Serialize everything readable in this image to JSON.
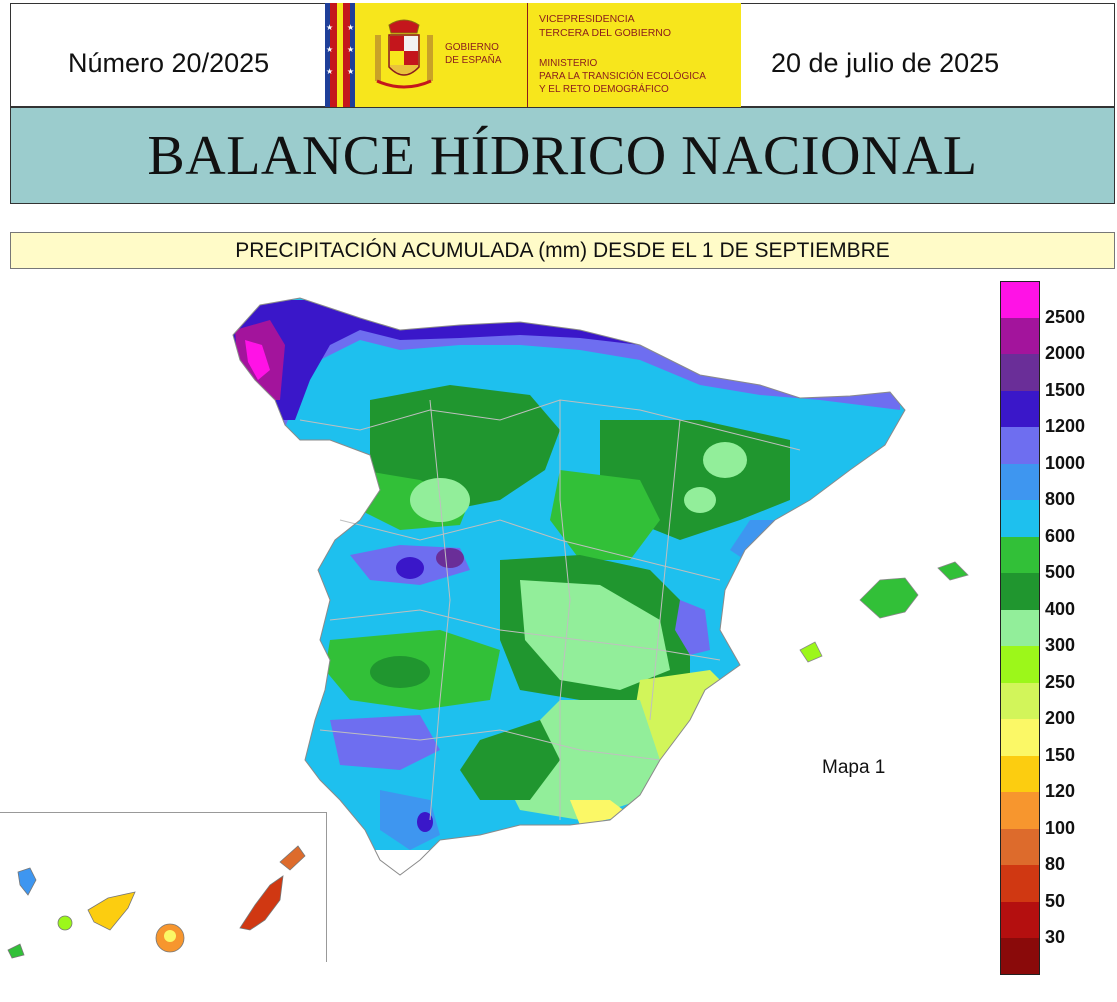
{
  "header": {
    "issue_number": "Número 20/2025",
    "date": "20 de julio de 2025",
    "gov_label": "GOBIERNO\nDE ESPAÑA",
    "ministry_top": "VICEPRESIDENCIA\nTERCERA DEL GOBIERNO",
    "ministry_bottom": "MINISTERIO\nPARA LA TRANSICIÓN ECOLÓGICA\nY EL RETO DEMOGRÁFICO",
    "banner_color": "#f7e61c"
  },
  "title": "BALANCE HÍDRICO NACIONAL",
  "subtitle": "PRECIPITACIÓN ACUMULADA (mm) DESDE EL 1 DE SEPTIEMBRE",
  "map": {
    "label": "Mapa 1",
    "dominant_regions": [
      {
        "region": "northwest-coast",
        "class": "2000-2500"
      },
      {
        "region": "cantabrian-coast",
        "class": "1000-1500"
      },
      {
        "region": "northern-plateau",
        "class": "400-600"
      },
      {
        "region": "central-system",
        "class": "1000-1500"
      },
      {
        "region": "la-mancha",
        "class": "300-400"
      },
      {
        "region": "murcia-alicante",
        "class": "200-300"
      },
      {
        "region": "canary-islands-east",
        "class": "50-100"
      }
    ]
  },
  "legend": [
    {
      "label": "2500",
      "color": "#ff12e6"
    },
    {
      "label": "2000",
      "color": "#a3149c"
    },
    {
      "label": "1500",
      "color": "#6a2e98"
    },
    {
      "label": "1200",
      "color": "#3a17c9"
    },
    {
      "label": "1000",
      "color": "#6e6ef0"
    },
    {
      "label": "800",
      "color": "#3e96f0"
    },
    {
      "label": "600",
      "color": "#1ec0ee"
    },
    {
      "label": "500",
      "color": "#32c038"
    },
    {
      "label": "400",
      "color": "#20962f"
    },
    {
      "label": "300",
      "color": "#92ee9a"
    },
    {
      "label": "250",
      "color": "#9cf71a"
    },
    {
      "label": "200",
      "color": "#d2f55a"
    },
    {
      "label": "150",
      "color": "#fbf866"
    },
    {
      "label": "120",
      "color": "#fccd10"
    },
    {
      "label": "100",
      "color": "#f7962e"
    },
    {
      "label": "80",
      "color": "#dd6b2c"
    },
    {
      "label": "50",
      "color": "#d03812"
    },
    {
      "label": "30",
      "color": "#b40f0f"
    },
    {
      "label": "",
      "color": "#8a0a0a"
    }
  ]
}
